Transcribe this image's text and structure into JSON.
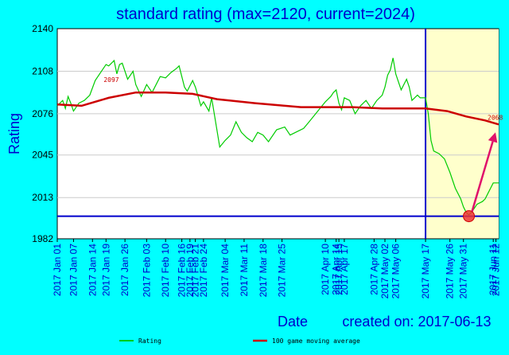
{
  "chart_data": {
    "type": "line",
    "title": "standard rating (max=2120, current=2024)",
    "xlabel": "Date",
    "ylabel": "Rating",
    "created_label": "created on: 2017-06-13",
    "ylim": [
      1982,
      2140
    ],
    "yticks": [
      1982,
      2013,
      2045,
      2076,
      2108,
      2140
    ],
    "xlim": [
      "2017-01-01",
      "2017-06-13"
    ],
    "xticks": [
      "2017 Jan 01",
      "2017 Jan 07",
      "2017 Jan 14",
      "2017 Jan 19",
      "2017 Jan 26",
      "2017 Feb 03",
      "2017 Feb 10",
      "2017 Feb 16",
      "2017 Feb 19",
      "2017 Feb 21",
      "2017 Feb 24",
      "2017 Mar 04",
      "2017 Mar 11",
      "2017 Mar 18",
      "2017 Mar 25",
      "2017 Apr 10",
      "2017 Apr 14",
      "2017 Apr 15",
      "2017 Apr 17",
      "2017 Apr 28",
      "2017 May 02",
      "2017 May 06",
      "2017 May 17",
      "2017 May 26",
      "2017 May 31",
      "2017 Jun 11",
      "2017 Jun 12"
    ],
    "marker_date": "2017-05-17",
    "min_rating_line": 1999,
    "series": [
      {
        "name": "Rating",
        "color": "#00CC00",
        "x": [
          "2017-01-01",
          "2017-01-03",
          "2017-01-04",
          "2017-01-05",
          "2017-01-06",
          "2017-01-07",
          "2017-01-09",
          "2017-01-11",
          "2017-01-13",
          "2017-01-15",
          "2017-01-17",
          "2017-01-19",
          "2017-01-20",
          "2017-01-22",
          "2017-01-23",
          "2017-01-24",
          "2017-01-25",
          "2017-01-27",
          "2017-01-29",
          "2017-01-30",
          "2017-02-01",
          "2017-02-03",
          "2017-02-05",
          "2017-02-08",
          "2017-02-10",
          "2017-02-12",
          "2017-02-14",
          "2017-02-15",
          "2017-02-17",
          "2017-02-18",
          "2017-02-20",
          "2017-02-21",
          "2017-02-23",
          "2017-02-24",
          "2017-02-26",
          "2017-02-27",
          "2017-03-02",
          "2017-03-04",
          "2017-03-06",
          "2017-03-08",
          "2017-03-10",
          "2017-03-12",
          "2017-03-14",
          "2017-03-16",
          "2017-03-18",
          "2017-03-20",
          "2017-03-23",
          "2017-03-26",
          "2017-03-28",
          "2017-03-30",
          "2017-04-02",
          "2017-04-04",
          "2017-04-06",
          "2017-04-08",
          "2017-04-10",
          "2017-04-12",
          "2017-04-13",
          "2017-04-14",
          "2017-04-15",
          "2017-04-16",
          "2017-04-17",
          "2017-04-19",
          "2017-04-21",
          "2017-04-23",
          "2017-04-25",
          "2017-04-27",
          "2017-04-29",
          "2017-05-01",
          "2017-05-02",
          "2017-05-03",
          "2017-05-04",
          "2017-05-05",
          "2017-05-06",
          "2017-05-08",
          "2017-05-10",
          "2017-05-11",
          "2017-05-12",
          "2017-05-14",
          "2017-05-15",
          "2017-05-17",
          "2017-05-18",
          "2017-05-19",
          "2017-05-20",
          "2017-05-22",
          "2017-05-24",
          "2017-05-26",
          "2017-05-28",
          "2017-05-30",
          "2017-05-31",
          "2017-06-01",
          "2017-06-02",
          "2017-06-03",
          "2017-06-05",
          "2017-06-07",
          "2017-06-08",
          "2017-06-09",
          "2017-06-10",
          "2017-06-11",
          "2017-06-12",
          "2017-06-13"
        ],
        "values": [
          2082,
          2086,
          2080,
          2089,
          2084,
          2078,
          2084,
          2086,
          2090,
          2101,
          2107,
          2113,
          2112,
          2116,
          2106,
          2113,
          2114,
          2102,
          2108,
          2098,
          2089,
          2098,
          2092,
          2104,
          2103,
          2107,
          2110,
          2112,
          2096,
          2093,
          2101,
          2096,
          2082,
          2085,
          2078,
          2088,
          2051,
          2056,
          2060,
          2070,
          2062,
          2058,
          2055,
          2062,
          2060,
          2055,
          2064,
          2066,
          2060,
          2062,
          2065,
          2070,
          2075,
          2080,
          2085,
          2089,
          2092,
          2094,
          2084,
          2079,
          2088,
          2086,
          2076,
          2082,
          2086,
          2080,
          2086,
          2090,
          2096,
          2105,
          2109,
          2118,
          2106,
          2094,
          2102,
          2096,
          2086,
          2090,
          2088,
          2088,
          2076,
          2056,
          2048,
          2046,
          2042,
          2032,
          2020,
          2012,
          2006,
          2002,
          2000,
          2002,
          2008,
          2010,
          2012,
          2016,
          2020,
          2024,
          2024,
          2024
        ]
      },
      {
        "name": "100 game moving average",
        "color": "#CC0000",
        "x": [
          "2017-01-01",
          "2017-01-10",
          "2017-01-20",
          "2017-01-30",
          "2017-02-10",
          "2017-02-20",
          "2017-03-01",
          "2017-03-15",
          "2017-04-01",
          "2017-04-20",
          "2017-05-01",
          "2017-05-17",
          "2017-05-25",
          "2017-06-01",
          "2017-06-08",
          "2017-06-13"
        ],
        "values": [
          2083,
          2082,
          2088,
          2092,
          2092,
          2091,
          2087,
          2084,
          2081,
          2081,
          2080,
          2080,
          2078,
          2074,
          2071,
          2068
        ]
      }
    ],
    "annotations": [
      {
        "text": "2097",
        "x": "2017-01-24",
        "y": 2097
      },
      {
        "text": "2068",
        "x": "2017-06-13",
        "y": 2068
      }
    ],
    "min_point": {
      "x": "2017-06-02",
      "y": 1999
    },
    "legend_position": "bottom"
  }
}
